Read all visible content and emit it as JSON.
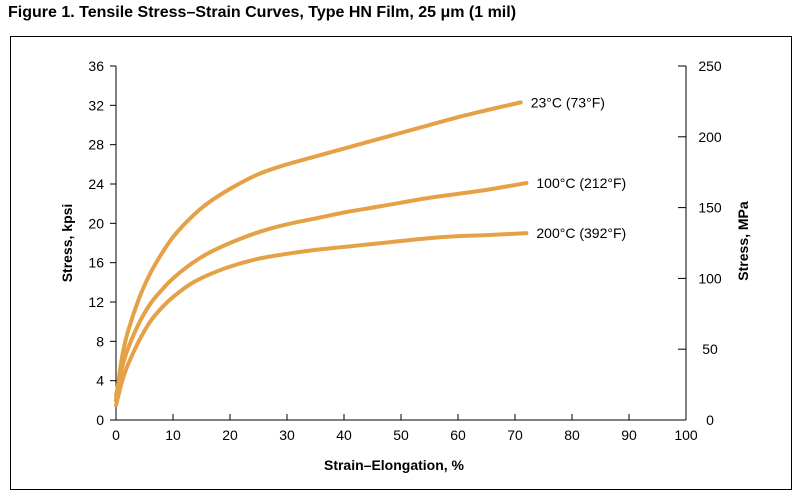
{
  "figure": {
    "title": "Figure 1.   Tensile Stress–Strain Curves, Type HN Film, 25 μm (1 mil)"
  },
  "chart_data": {
    "type": "line",
    "title": "Figure 1.   Tensile Stress–Strain Curves, Type HN Film, 25 μm (1 mil)",
    "xlabel": "Strain–Elongation, %",
    "ylabel": "Stress, kpsi",
    "y2label": "Stress, MPa",
    "xlim": [
      0,
      100
    ],
    "ylim": [
      0,
      36
    ],
    "y2lim": [
      0,
      250
    ],
    "x_ticks": [
      0,
      10,
      20,
      30,
      40,
      50,
      60,
      70,
      80,
      90,
      100
    ],
    "y_ticks": [
      0,
      4,
      8,
      12,
      16,
      20,
      24,
      28,
      32,
      36
    ],
    "y2_ticks": [
      0,
      50,
      100,
      150,
      200,
      250
    ],
    "grid": false,
    "line_color": "#e5a145",
    "series": [
      {
        "name": "23°C (73°F)",
        "x": [
          0,
          1,
          2,
          4,
          6,
          8,
          10,
          13,
          16,
          20,
          25,
          30,
          35,
          40,
          45,
          50,
          55,
          60,
          65,
          71
        ],
        "y": [
          2,
          6.2,
          8.8,
          12.3,
          14.9,
          16.9,
          18.6,
          20.5,
          22.0,
          23.5,
          25.0,
          26.0,
          26.8,
          27.6,
          28.4,
          29.2,
          30.0,
          30.8,
          31.5,
          32.3
        ]
      },
      {
        "name": "100°C (212°F)",
        "x": [
          0,
          1,
          2,
          4,
          6,
          8,
          10,
          13,
          16,
          20,
          25,
          30,
          35,
          40,
          45,
          50,
          55,
          60,
          65,
          72
        ],
        "y": [
          2.5,
          5.2,
          7.1,
          9.8,
          11.8,
          13.2,
          14.4,
          15.8,
          16.9,
          18.0,
          19.1,
          19.9,
          20.5,
          21.1,
          21.6,
          22.1,
          22.6,
          23.0,
          23.4,
          24.1
        ]
      },
      {
        "name": "200°C (392°F)",
        "x": [
          0,
          1,
          2,
          4,
          6,
          8,
          10,
          13,
          16,
          20,
          25,
          30,
          35,
          40,
          45,
          50,
          55,
          60,
          65,
          72
        ],
        "y": [
          1.5,
          3.8,
          5.5,
          8.0,
          10.0,
          11.4,
          12.5,
          13.8,
          14.7,
          15.6,
          16.4,
          16.9,
          17.3,
          17.6,
          17.9,
          18.2,
          18.5,
          18.7,
          18.8,
          19.0
        ]
      }
    ]
  }
}
